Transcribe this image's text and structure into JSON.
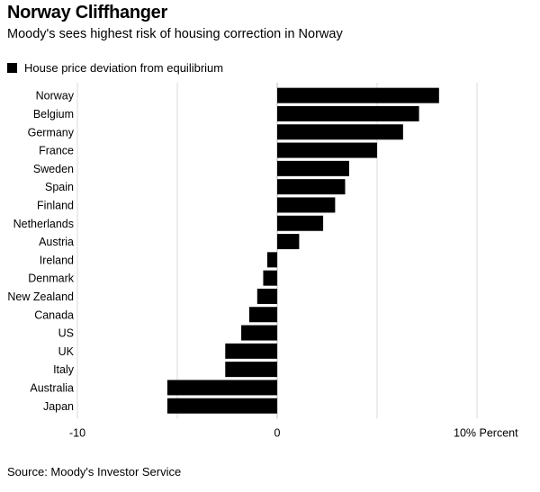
{
  "header": {
    "title": "Norway Cliffhanger",
    "subtitle": "Moody's sees highest risk of housing correction in Norway"
  },
  "footer": {
    "source": "Source: Moody's Investor Service"
  },
  "chart_data": {
    "type": "bar",
    "orientation": "horizontal",
    "categories": [
      "Norway",
      "Belgium",
      "Germany",
      "France",
      "Sweden",
      "Spain",
      "Finland",
      "Netherlands",
      "Austria",
      "Ireland",
      "Denmark",
      "New Zealand",
      "Canada",
      "US",
      "UK",
      "Italy",
      "Australia",
      "Japan"
    ],
    "series": [
      {
        "name": "House price deviation from equilibrium",
        "values": [
          8.1,
          7.1,
          6.3,
          5.0,
          3.6,
          3.4,
          2.9,
          2.3,
          1.1,
          -0.5,
          -0.7,
          -1.0,
          -1.4,
          -1.8,
          -2.6,
          -2.6,
          -5.5,
          -5.5
        ]
      }
    ],
    "x_ticks": [
      {
        "value": -10,
        "label": "-10"
      },
      {
        "value": 0,
        "label": "0"
      },
      {
        "value": 10,
        "label": "10% Percent"
      }
    ],
    "xlim": [
      -10,
      10
    ],
    "grid": "vertical",
    "legend_position": "top-left",
    "bar_color": "#000000",
    "grid_color": "#d9d9d9"
  }
}
